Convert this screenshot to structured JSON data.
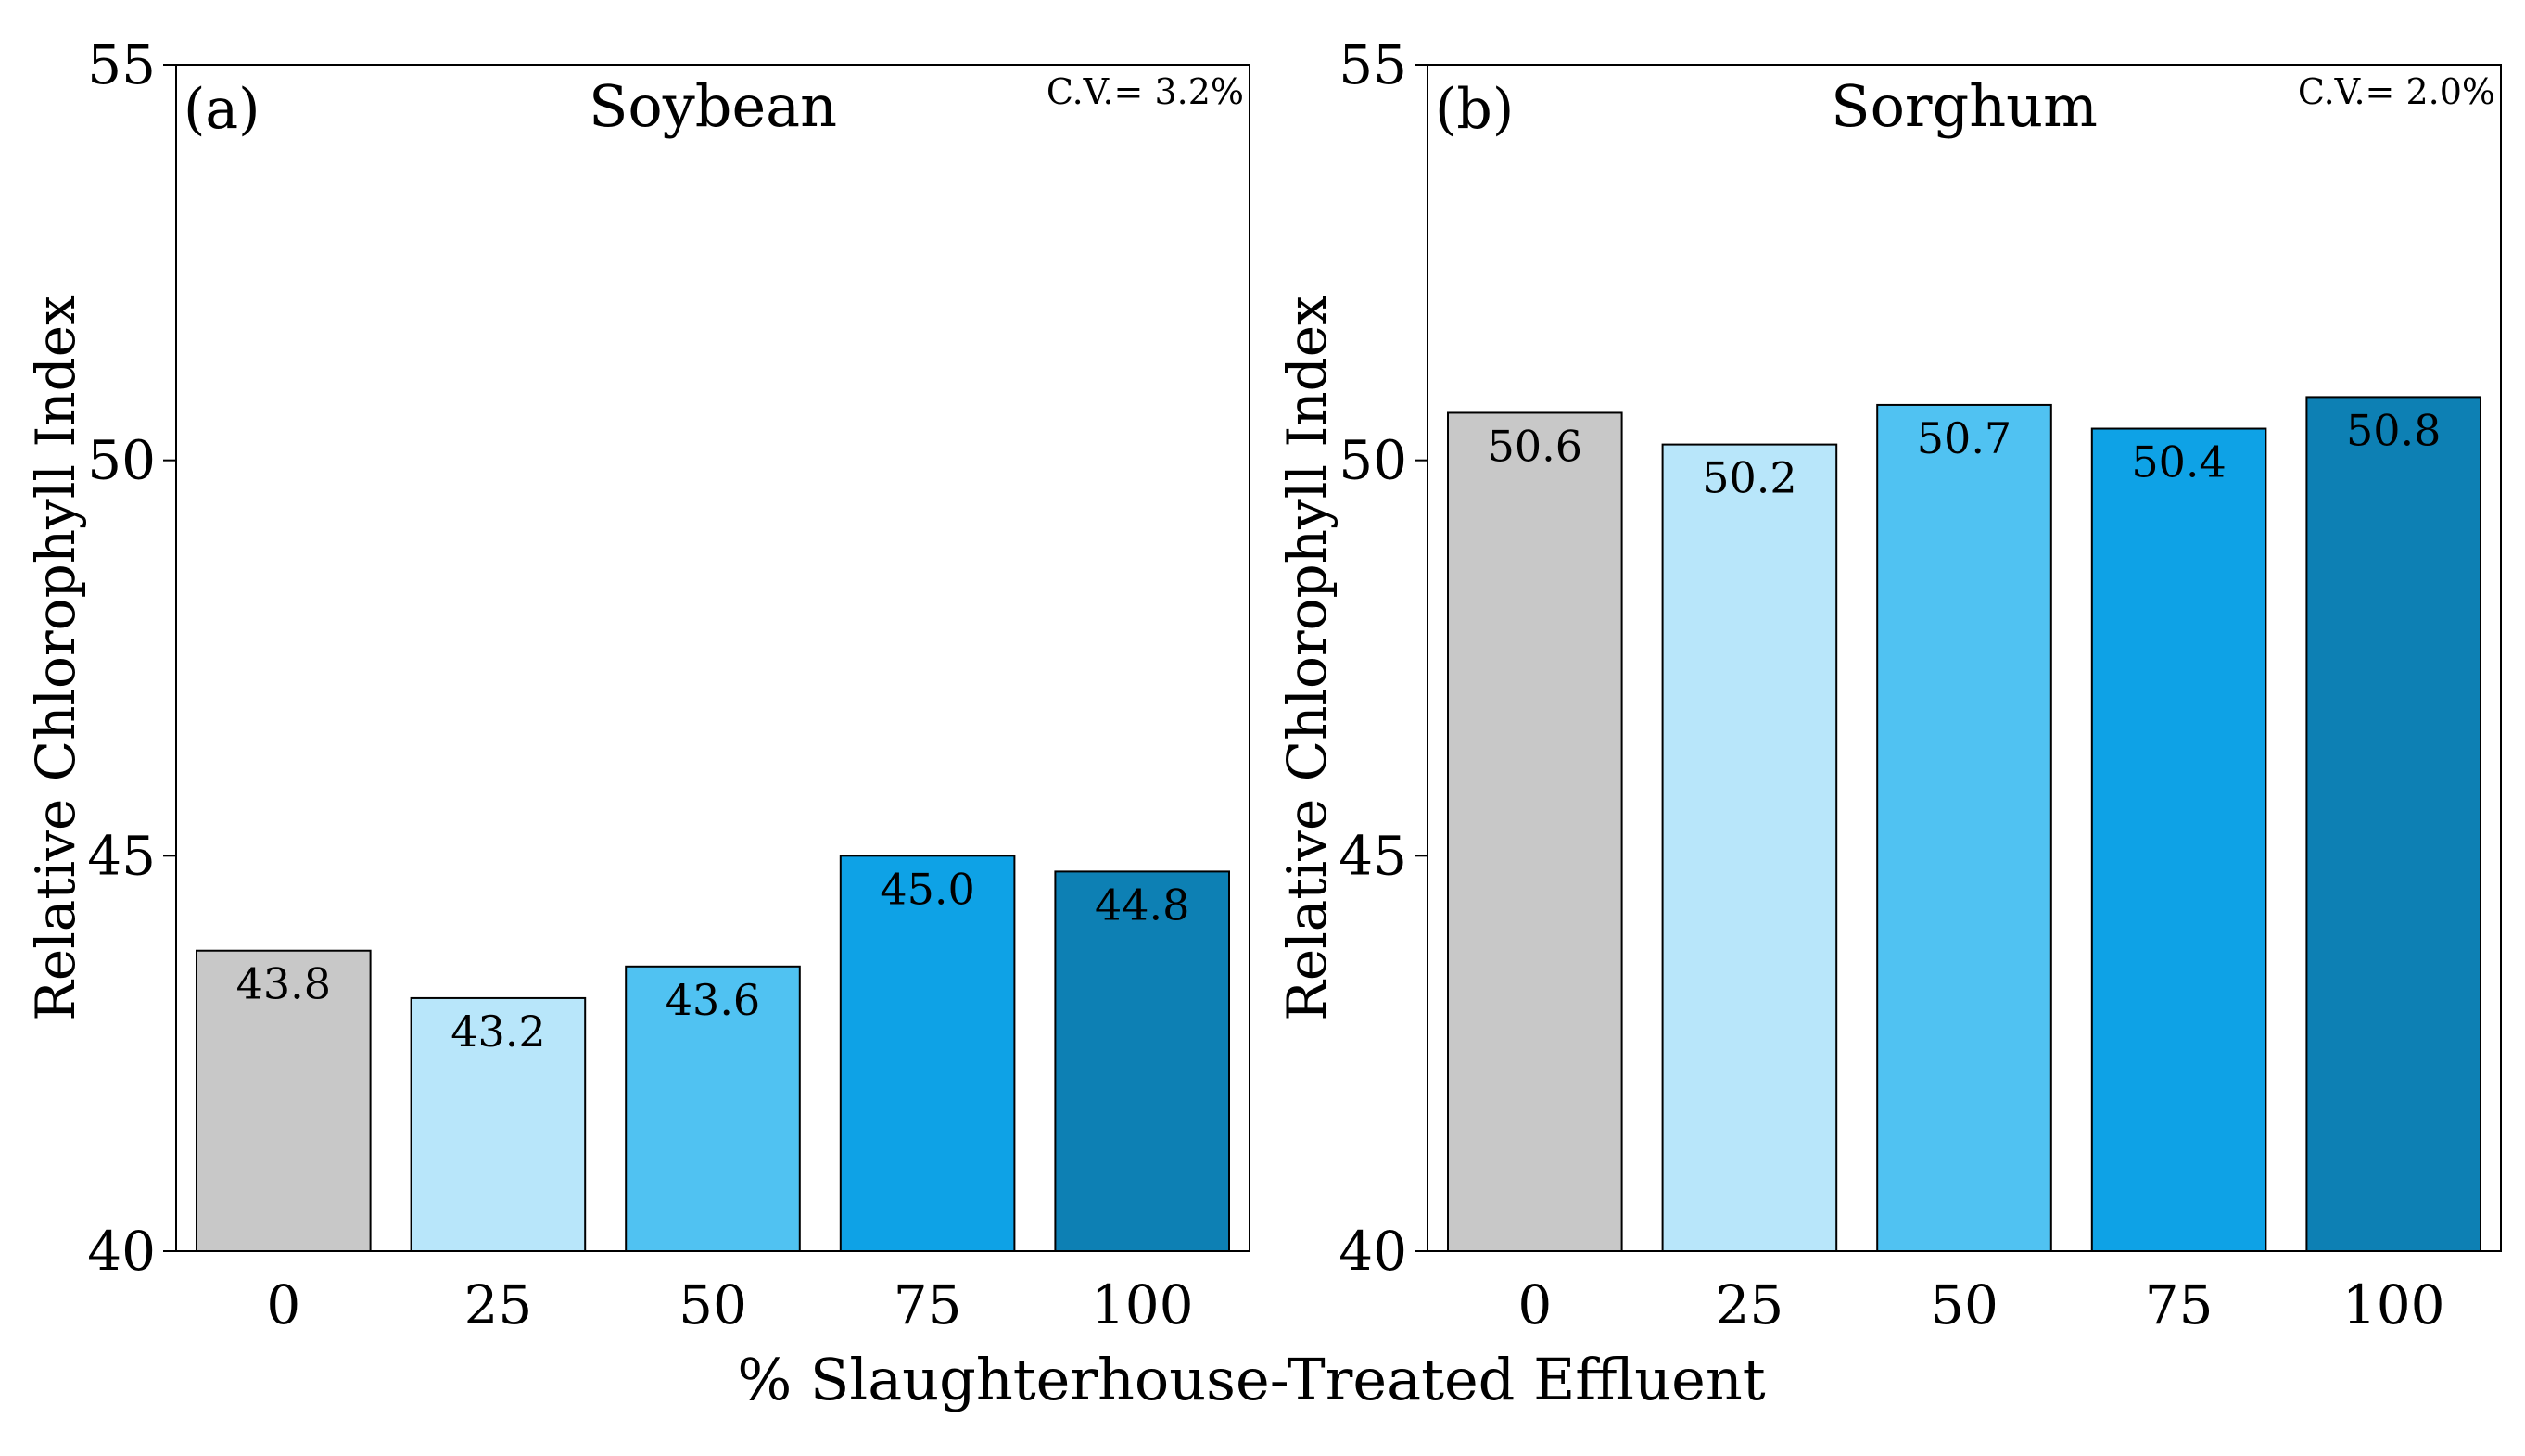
{
  "figure": {
    "xlabel": "% Slaughterhouse-Treated Effluent",
    "colors": [
      "#c8c8c8",
      "#b8e6fa",
      "#50c2f2",
      "#0ea2e6",
      "#0d80b4"
    ]
  },
  "chart_data": [
    {
      "type": "bar",
      "panel_label": "(a)",
      "title": "Soybean",
      "annotation": "C.V.= 3.2%",
      "categories": [
        "0",
        "25",
        "50",
        "75",
        "100"
      ],
      "values": [
        43.8,
        43.2,
        43.6,
        45.0,
        44.8
      ],
      "value_labels": [
        "43.8",
        "43.2",
        "43.6",
        "45.0",
        "44.8"
      ],
      "ylabel": "Relative Chlorophyll Index",
      "xlabel": "% Slaughterhouse-Treated Effluent",
      "ylim": [
        40,
        55
      ],
      "yticks": [
        "40",
        "45",
        "50",
        "55"
      ],
      "grid": false
    },
    {
      "type": "bar",
      "panel_label": "(b)",
      "title": "Sorghum",
      "annotation": "C.V.= 2.0%",
      "categories": [
        "0",
        "25",
        "50",
        "75",
        "100"
      ],
      "values": [
        50.6,
        50.2,
        50.7,
        50.4,
        50.8
      ],
      "value_labels": [
        "50.6",
        "50.2",
        "50.7",
        "50.4",
        "50.8"
      ],
      "ylabel": "Relative Chlorophyll Index",
      "xlabel": "% Slaughterhouse-Treated Effluent",
      "ylim": [
        40,
        55
      ],
      "yticks": [
        "40",
        "45",
        "50",
        "55"
      ],
      "grid": false
    }
  ]
}
